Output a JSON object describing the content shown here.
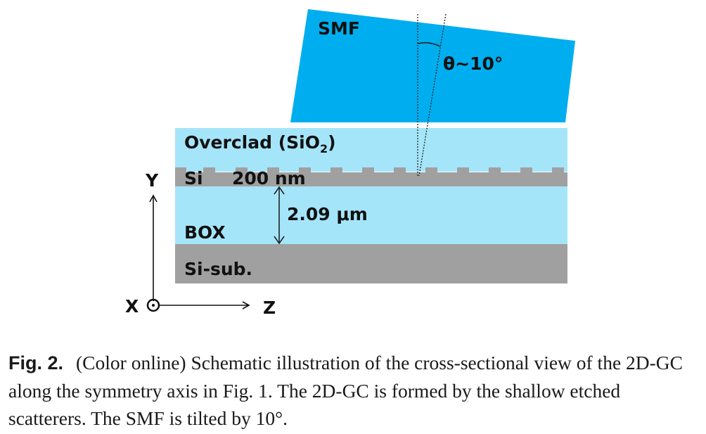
{
  "figure": {
    "smf_label": "SMF",
    "angle_label": "θ~10°",
    "overclad_label_main": "Overclad (SiO",
    "overclad_label_sub": "2",
    "overclad_label_end": ")",
    "si_label": "Si",
    "si_thickness": "200 nm",
    "box_thickness": "2.09 μm",
    "box_label": "BOX",
    "substrate_label": "Si-sub.",
    "axis_y": "Y",
    "axis_x": "X",
    "axis_z": "Z",
    "colors": {
      "smf": "#00aeef",
      "cladding": "#a5e5fa",
      "silicon": "#a0a0a0"
    }
  },
  "caption": {
    "label": "Fig. 2.",
    "text": "(Color online) Schematic illustration of the cross-sectional view of the 2D-GC along the symmetry axis in Fig. 1. The 2D-GC is formed by the shallow etched scatterers. The SMF is tilted by 10°."
  }
}
